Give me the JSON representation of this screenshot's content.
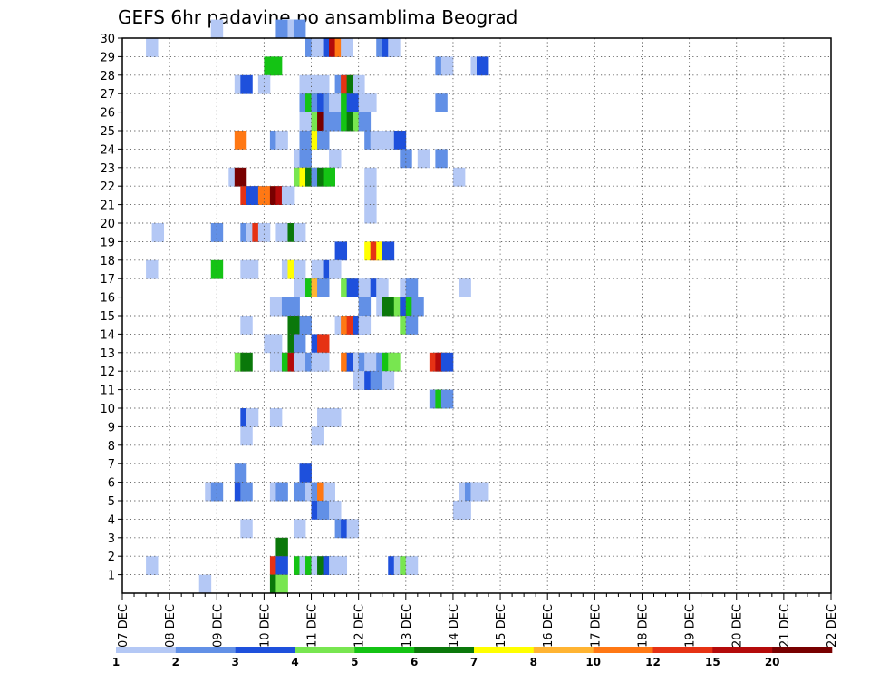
{
  "chart_data": {
    "type": "heatmap",
    "title": "GEFS 6hr padavine po ansamblima Beograd",
    "xlabel": "",
    "ylabel": "",
    "x_ticks": [
      "07 DEC",
      "08 DEC",
      "09 DEC",
      "10 DEC",
      "11 DEC",
      "12 DEC",
      "13 DEC",
      "14 DEC",
      "15 DEC",
      "16 DEC",
      "17 DEC",
      "18 DEC",
      "19 DEC",
      "20 DEC",
      "21 DEC",
      "22 DEC"
    ],
    "y_ticks": [
      "1",
      "2",
      "3",
      "4",
      "5",
      "6",
      "7",
      "8",
      "9",
      "10",
      "11",
      "12",
      "13",
      "14",
      "15",
      "16",
      "17",
      "18",
      "19",
      "20",
      "21",
      "22",
      "23",
      "24",
      "25",
      "26",
      "27",
      "28",
      "29",
      "30"
    ],
    "x_range": [
      0,
      60
    ],
    "y_range": [
      0,
      30
    ],
    "grid": true,
    "legend": {
      "placement": "bottom",
      "labels": [
        "1",
        "2",
        "3",
        "4",
        "5",
        "6",
        "7",
        "8",
        "10",
        "12",
        "15",
        "20"
      ],
      "colors": [
        "#b4c8f5",
        "#6290e6",
        "#1e50dc",
        "#78e650",
        "#14c314",
        "#0a780a",
        "#ffff00",
        "#ffb432",
        "#ff7814",
        "#e63214",
        "#b40a0a",
        "#780000"
      ]
    },
    "cells": [
      {
        "m": 30,
        "s": [
          [
            7.5,
            1
          ],
          [
            13,
            2
          ],
          [
            13.5,
            2
          ],
          [
            14,
            1
          ],
          [
            14.5,
            2
          ]
        ]
      },
      {
        "m": 29,
        "s": [
          [
            2,
            1
          ],
          [
            15.5,
            2
          ],
          [
            16,
            1
          ],
          [
            16.5,
            1
          ],
          [
            17,
            3
          ],
          [
            17.5,
            11
          ],
          [
            18,
            9
          ],
          [
            18.5,
            1
          ],
          [
            21.5,
            2
          ],
          [
            22,
            3
          ],
          [
            22.5,
            1
          ]
        ]
      },
      {
        "m": 28,
        "s": [
          [
            12,
            5
          ],
          [
            12.5,
            5
          ],
          [
            26.5,
            2
          ],
          [
            27,
            1
          ],
          [
            29.5,
            1
          ],
          [
            30,
            3
          ]
        ]
      },
      {
        "m": 27,
        "s": [
          [
            9.5,
            1
          ],
          [
            10,
            3
          ],
          [
            11.5,
            1
          ],
          [
            15,
            1
          ],
          [
            15.5,
            1
          ],
          [
            16.5,
            1
          ],
          [
            18,
            2
          ],
          [
            18.5,
            10
          ],
          [
            19,
            6
          ],
          [
            19.5,
            1
          ]
        ]
      },
      {
        "m": 26,
        "s": [
          [
            15,
            2
          ],
          [
            15.5,
            5
          ],
          [
            16,
            2
          ],
          [
            16.5,
            3
          ],
          [
            17,
            2
          ],
          [
            17.5,
            1
          ],
          [
            18.5,
            5
          ],
          [
            19,
            3
          ],
          [
            20,
            1
          ],
          [
            20.5,
            1
          ],
          [
            26.5,
            2
          ]
        ]
      },
      {
        "m": 25,
        "s": [
          [
            15,
            1
          ],
          [
            15.5,
            1
          ],
          [
            16,
            4
          ],
          [
            16.5,
            12
          ],
          [
            17,
            2
          ],
          [
            17.5,
            2
          ],
          [
            18,
            2
          ],
          [
            18.5,
            5
          ],
          [
            19,
            6
          ],
          [
            19.5,
            4
          ],
          [
            20,
            2
          ]
        ]
      },
      {
        "m": 24,
        "s": [
          [
            9.5,
            9
          ],
          [
            12.5,
            2
          ],
          [
            13,
            1
          ],
          [
            15,
            2
          ],
          [
            15.5,
            2
          ],
          [
            16,
            7
          ],
          [
            16.5,
            2
          ],
          [
            20.5,
            2
          ],
          [
            21,
            1
          ],
          [
            22,
            1
          ],
          [
            22.5,
            1
          ],
          [
            23,
            3
          ]
        ]
      },
      {
        "m": 23,
        "s": [
          [
            14.5,
            1
          ],
          [
            15,
            2
          ],
          [
            17.5,
            1
          ],
          [
            23.5,
            2
          ],
          [
            25,
            1
          ],
          [
            26.5,
            2
          ]
        ]
      },
      {
        "m": 22,
        "s": [
          [
            9,
            1
          ],
          [
            9.5,
            12
          ],
          [
            14.5,
            4
          ],
          [
            15,
            7
          ],
          [
            15.5,
            6
          ],
          [
            16,
            2
          ],
          [
            16.5,
            6
          ],
          [
            17,
            5
          ],
          [
            20.5,
            1
          ],
          [
            28,
            1
          ]
        ]
      },
      {
        "m": 21,
        "s": [
          [
            10,
            10
          ],
          [
            10.5,
            3
          ],
          [
            11,
            3
          ],
          [
            11.5,
            9
          ],
          [
            12,
            9
          ],
          [
            12.5,
            12
          ],
          [
            13,
            11
          ],
          [
            13.5,
            1
          ],
          [
            20.5,
            1
          ]
        ]
      },
      {
        "m": 20,
        "s": [
          [
            20.5,
            1
          ]
        ]
      },
      {
        "m": 19,
        "s": [
          [
            2.5,
            1
          ],
          [
            7.5,
            2
          ],
          [
            10,
            2
          ],
          [
            10.5,
            1
          ],
          [
            11,
            10
          ],
          [
            11.5,
            1
          ],
          [
            13,
            1
          ],
          [
            14,
            6
          ],
          [
            14.5,
            1
          ]
        ]
      },
      {
        "m": 18,
        "s": [
          [
            18,
            3
          ],
          [
            20.5,
            7
          ],
          [
            21,
            10
          ],
          [
            21.5,
            7
          ],
          [
            22,
            3
          ]
        ]
      },
      {
        "m": 17,
        "s": [
          [
            2,
            1
          ],
          [
            7.5,
            5
          ],
          [
            10,
            1
          ],
          [
            10.5,
            1
          ],
          [
            13.5,
            1
          ],
          [
            14,
            7
          ],
          [
            14.5,
            1
          ],
          [
            16,
            1
          ],
          [
            16.5,
            1
          ],
          [
            17,
            3
          ],
          [
            17.5,
            1
          ]
        ]
      },
      {
        "m": 16,
        "s": [
          [
            14.5,
            1
          ],
          [
            15,
            1
          ],
          [
            15.5,
            5
          ],
          [
            16,
            8
          ],
          [
            16.5,
            2
          ],
          [
            18.5,
            4
          ],
          [
            19,
            3
          ],
          [
            20,
            1
          ],
          [
            20.5,
            1
          ],
          [
            21,
            3
          ],
          [
            21.5,
            1
          ],
          [
            23.5,
            1
          ],
          [
            24,
            2
          ],
          [
            28.5,
            1
          ]
        ]
      },
      {
        "m": 15,
        "s": [
          [
            12.5,
            1
          ],
          [
            13,
            1
          ],
          [
            13.5,
            2
          ],
          [
            14,
            2
          ],
          [
            20,
            2
          ],
          [
            21.5,
            1
          ],
          [
            22,
            6
          ],
          [
            22.5,
            6
          ],
          [
            23,
            4
          ],
          [
            23.5,
            3
          ],
          [
            24,
            5
          ],
          [
            24.5,
            2
          ]
        ]
      },
      {
        "m": 14,
        "s": [
          [
            10,
            1
          ],
          [
            14,
            6
          ],
          [
            14.5,
            6
          ],
          [
            15,
            2
          ],
          [
            18,
            1
          ],
          [
            18.5,
            9
          ],
          [
            19,
            10
          ],
          [
            19.5,
            3
          ],
          [
            20,
            1
          ],
          [
            23.5,
            4
          ],
          [
            24,
            2
          ]
        ]
      },
      {
        "m": 13,
        "s": [
          [
            12,
            1
          ],
          [
            12.5,
            1
          ],
          [
            14,
            6
          ],
          [
            14.5,
            2
          ],
          [
            16,
            3
          ],
          [
            16.5,
            10
          ]
        ]
      },
      {
        "m": 12,
        "s": [
          [
            9.5,
            4
          ],
          [
            10,
            6
          ],
          [
            12.5,
            1
          ],
          [
            13,
            1
          ],
          [
            13.5,
            5
          ],
          [
            14,
            11
          ],
          [
            14.5,
            1
          ],
          [
            15.5,
            2
          ],
          [
            16,
            1
          ],
          [
            16.5,
            1
          ],
          [
            18.5,
            9
          ],
          [
            19,
            3
          ],
          [
            19.5,
            1
          ],
          [
            20,
            2
          ],
          [
            20.5,
            1
          ],
          [
            21,
            1
          ],
          [
            21.5,
            2
          ],
          [
            22,
            5
          ],
          [
            22.5,
            4
          ],
          [
            26,
            10
          ],
          [
            26.5,
            11
          ],
          [
            27,
            3
          ]
        ]
      },
      {
        "m": 11,
        "s": [
          [
            19.5,
            1
          ],
          [
            20,
            1
          ],
          [
            20.5,
            3
          ],
          [
            21,
            2
          ],
          [
            22,
            1
          ]
        ]
      },
      {
        "m": 10,
        "s": [
          [
            26,
            2
          ],
          [
            26.5,
            5
          ],
          [
            27,
            2
          ]
        ]
      },
      {
        "m": 9,
        "s": [
          [
            10,
            3
          ],
          [
            10.5,
            1
          ],
          [
            12.5,
            1
          ],
          [
            16.5,
            1
          ],
          [
            17,
            1
          ],
          [
            17.5,
            1
          ]
        ]
      },
      {
        "m": 8,
        "s": [
          [
            10,
            1
          ],
          [
            16,
            1
          ]
        ]
      },
      {
        "m": 7,
        "s": []
      },
      {
        "m": 6,
        "s": [
          [
            9.5,
            2
          ],
          [
            15,
            3
          ]
        ]
      },
      {
        "m": 5,
        "s": [
          [
            7,
            1
          ],
          [
            7.5,
            2
          ],
          [
            9.5,
            3
          ],
          [
            10,
            2
          ],
          [
            12.5,
            1
          ],
          [
            13,
            2
          ],
          [
            14.5,
            2
          ],
          [
            15.5,
            1
          ],
          [
            16,
            2
          ],
          [
            16.5,
            9
          ],
          [
            17,
            1
          ],
          [
            28.5,
            1
          ],
          [
            29,
            2
          ],
          [
            29.5,
            1
          ],
          [
            30,
            1
          ]
        ]
      },
      {
        "m": 4,
        "s": [
          [
            16,
            3
          ],
          [
            16.5,
            2
          ],
          [
            17,
            2
          ],
          [
            17.5,
            1
          ],
          [
            28,
            1
          ],
          [
            28.5,
            1
          ]
        ]
      },
      {
        "m": 3,
        "s": [
          [
            10,
            1
          ],
          [
            14.5,
            1
          ],
          [
            18,
            2
          ],
          [
            18.5,
            3
          ],
          [
            19,
            1
          ]
        ]
      },
      {
        "m": 2,
        "s": [
          [
            13,
            6
          ]
        ]
      },
      {
        "m": 1,
        "s": [
          [
            2,
            1
          ],
          [
            12.5,
            10
          ],
          [
            13,
            3
          ],
          [
            14.5,
            5
          ],
          [
            15,
            1
          ],
          [
            15.5,
            5
          ],
          [
            16,
            1
          ],
          [
            16.5,
            6
          ],
          [
            17,
            3
          ],
          [
            17.5,
            1
          ],
          [
            18,
            1
          ],
          [
            22.5,
            3
          ],
          [
            23,
            1
          ],
          [
            23.5,
            4
          ],
          [
            24,
            1
          ]
        ]
      },
      {
        "m": 0,
        "s": [
          [
            6.5,
            1
          ],
          [
            12.5,
            6
          ],
          [
            13,
            4
          ]
        ]
      }
    ]
  }
}
